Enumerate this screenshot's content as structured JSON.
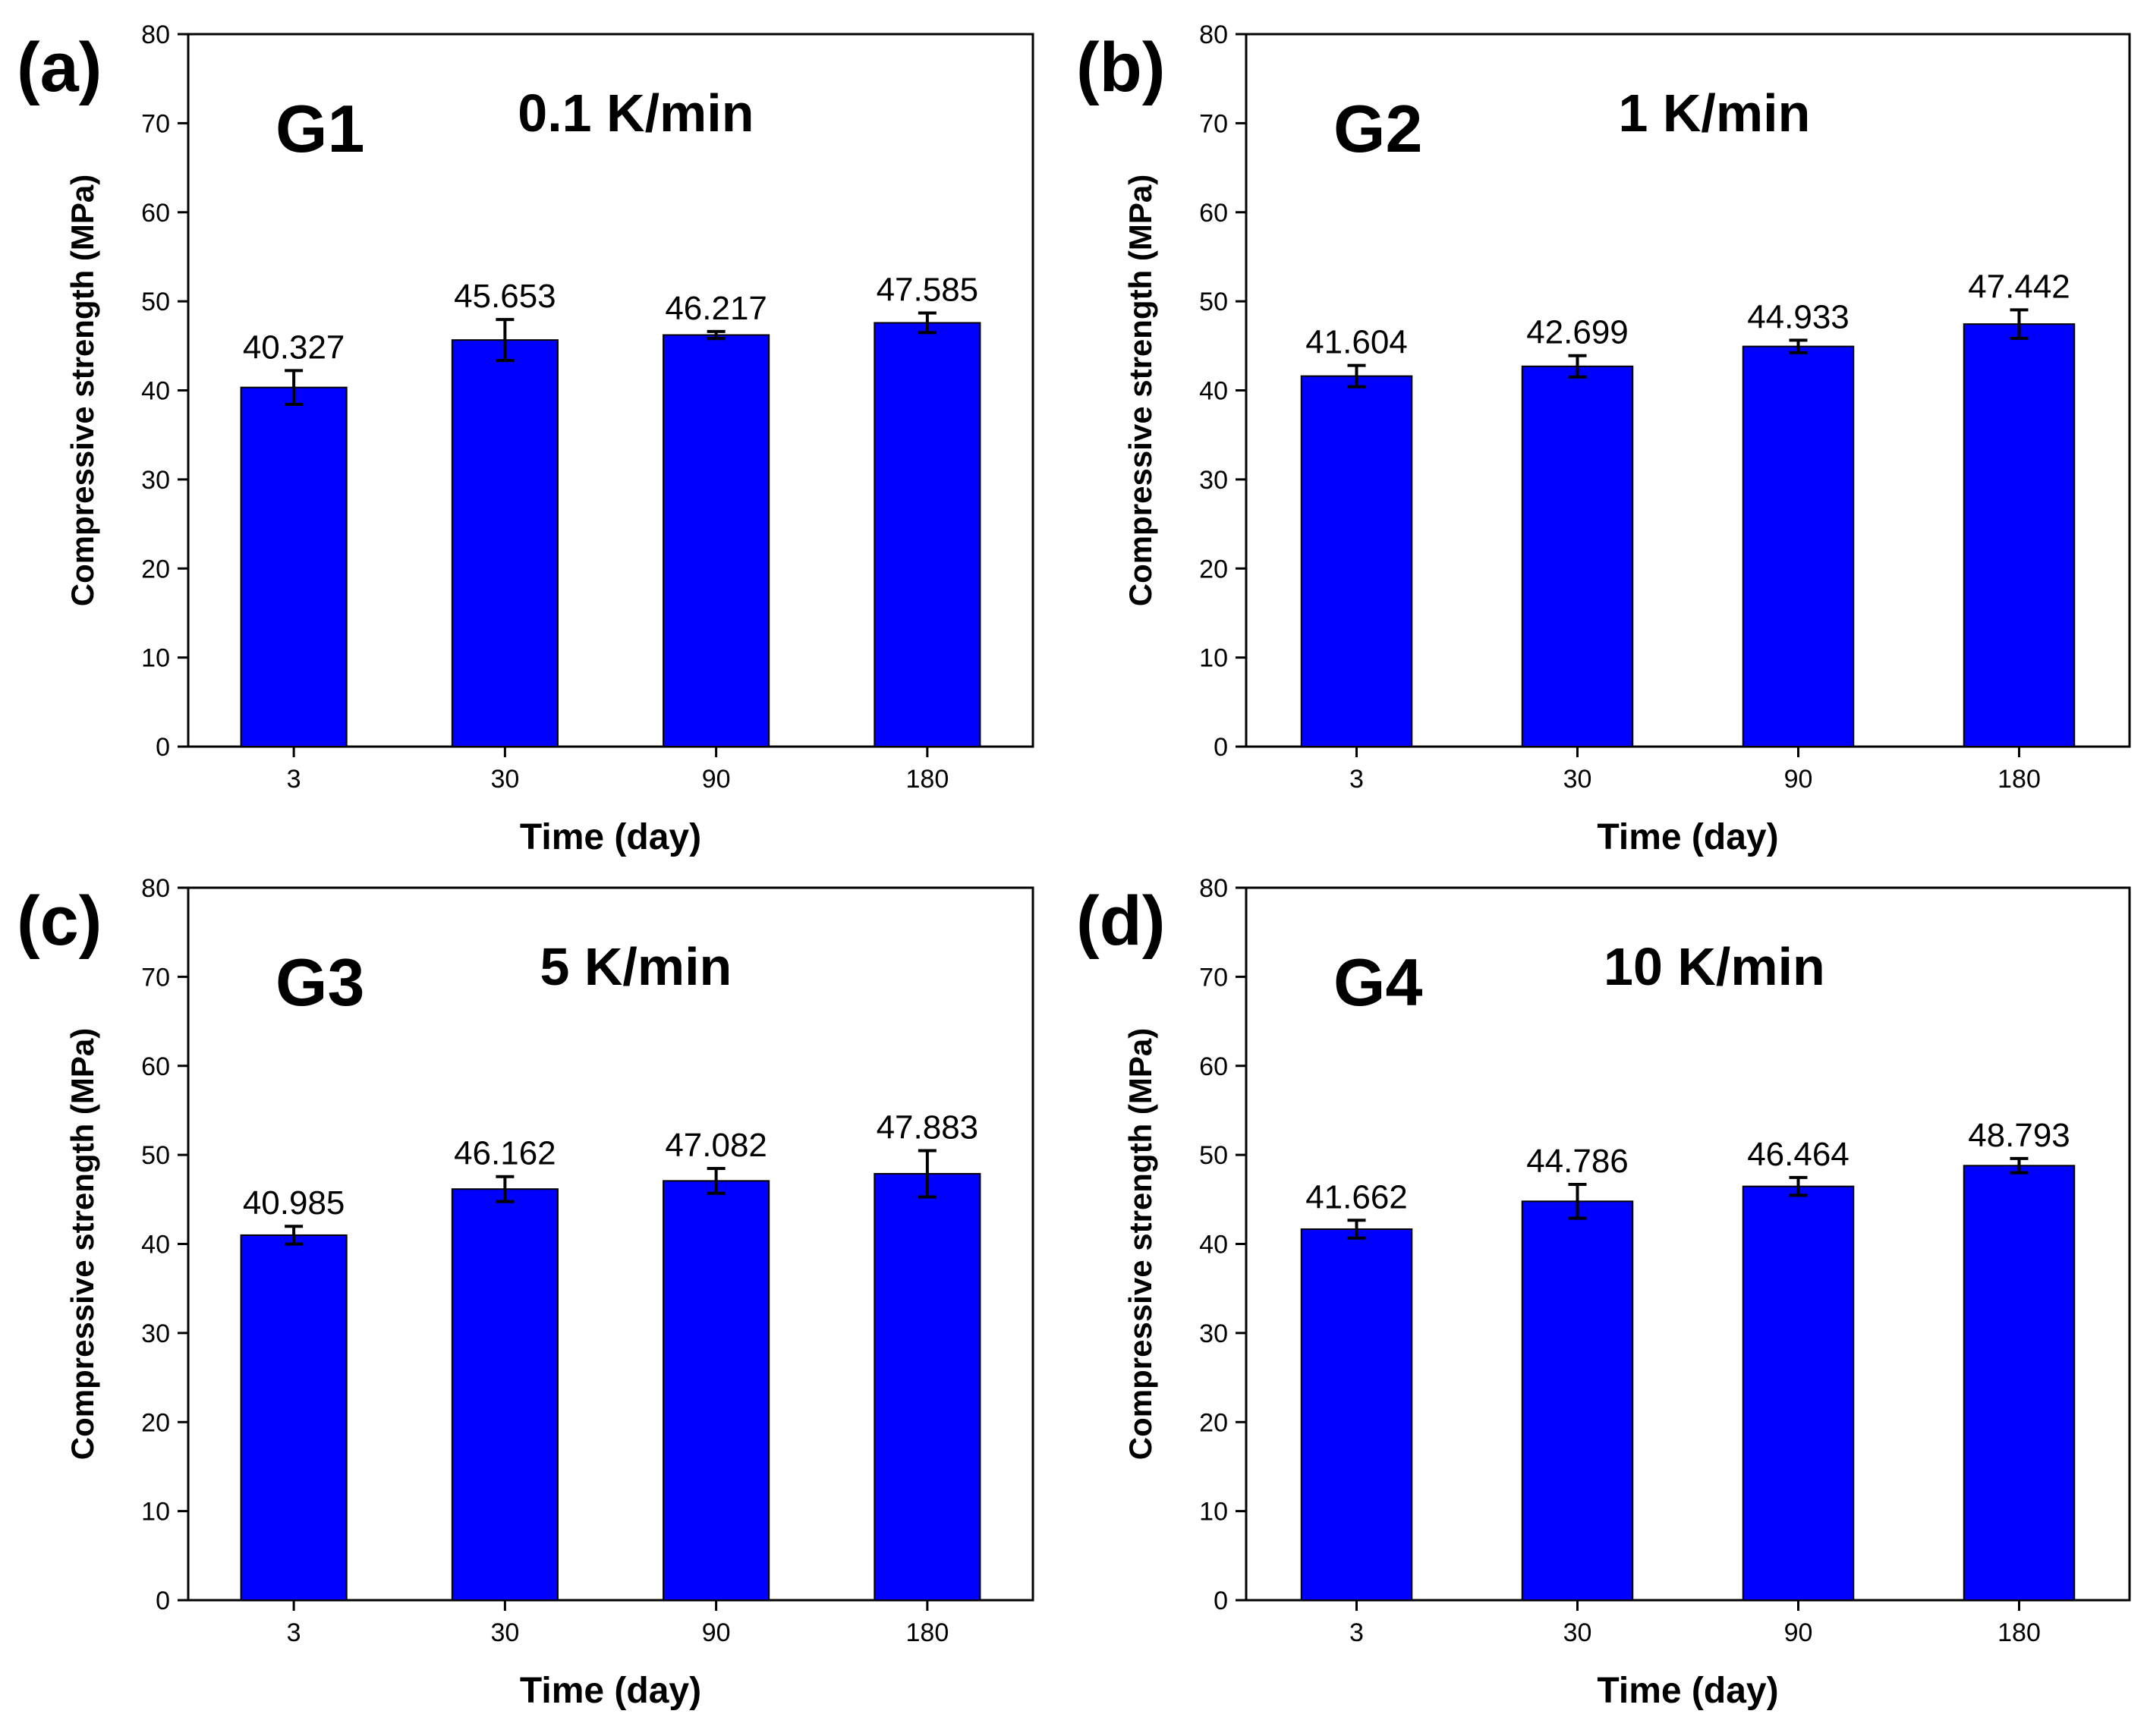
{
  "figure": {
    "bar_color": "#0000ff",
    "bar_edge_color": "#000000"
  },
  "chart_data": [
    {
      "type": "bar",
      "panel": "(a)",
      "group": "G1",
      "rate": "0.1 K/min",
      "categories": [
        "3",
        "30",
        "90",
        "180"
      ],
      "values": [
        40.327,
        45.653,
        46.217,
        47.585
      ],
      "value_labels": [
        "40.327",
        "45.653",
        "46.217",
        "47.585"
      ],
      "errors": [
        1.9,
        2.3,
        0.4,
        1.1
      ],
      "xlabel": "Time (day)",
      "ylabel": "Compressive strength (MPa)",
      "ylim": [
        0,
        80
      ],
      "yticks": [
        "0",
        "10",
        "20",
        "30",
        "40",
        "50",
        "60",
        "70",
        "80"
      ]
    },
    {
      "type": "bar",
      "panel": "(b)",
      "group": "G2",
      "rate": "1 K/min",
      "categories": [
        "3",
        "30",
        "90",
        "180"
      ],
      "values": [
        41.604,
        42.699,
        44.933,
        47.442
      ],
      "value_labels": [
        "41.604",
        "42.699",
        "44.933",
        "47.442"
      ],
      "errors": [
        1.2,
        1.2,
        0.7,
        1.6
      ],
      "xlabel": "Time (day)",
      "ylabel": "Compressive strength (MPa)",
      "ylim": [
        0,
        80
      ],
      "yticks": [
        "0",
        "10",
        "20",
        "30",
        "40",
        "50",
        "60",
        "70",
        "80"
      ]
    },
    {
      "type": "bar",
      "panel": "(c)",
      "group": "G3",
      "rate": "5 K/min",
      "categories": [
        "3",
        "30",
        "90",
        "180"
      ],
      "values": [
        40.985,
        46.162,
        47.082,
        47.883
      ],
      "value_labels": [
        "40.985",
        "46.162",
        "47.082",
        "47.883"
      ],
      "errors": [
        1.0,
        1.4,
        1.4,
        2.6
      ],
      "xlabel": "Time (day)",
      "ylabel": "Compressive strength (MPa)",
      "ylim": [
        0,
        80
      ],
      "yticks": [
        "0",
        "10",
        "20",
        "30",
        "40",
        "50",
        "60",
        "70",
        "80"
      ]
    },
    {
      "type": "bar",
      "panel": "(d)",
      "group": "G4",
      "rate": "10 K/min",
      "categories": [
        "3",
        "30",
        "90",
        "180"
      ],
      "values": [
        41.662,
        44.786,
        46.464,
        48.793
      ],
      "value_labels": [
        "41.662",
        "44.786",
        "46.464",
        "48.793"
      ],
      "errors": [
        1.0,
        1.9,
        1.0,
        0.8
      ],
      "xlabel": "Time (day)",
      "ylabel": "Compressive strength (MPa)",
      "ylim": [
        0,
        80
      ],
      "yticks": [
        "0",
        "10",
        "20",
        "30",
        "40",
        "50",
        "60",
        "70",
        "80"
      ]
    }
  ]
}
